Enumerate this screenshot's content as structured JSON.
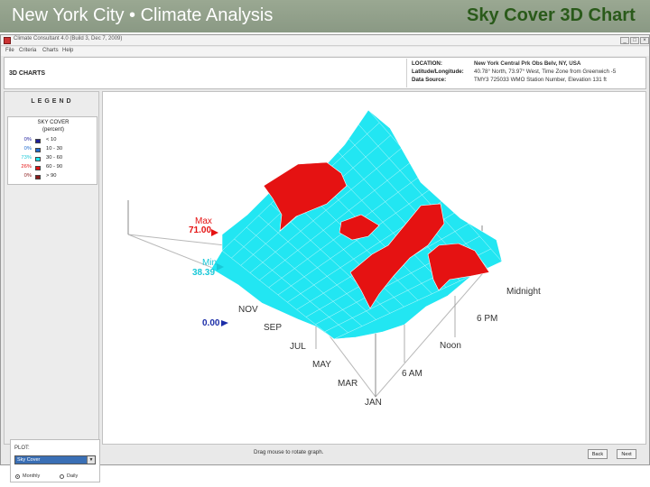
{
  "slide": {
    "title_left": "New York City • Climate Analysis",
    "title_right": "Sky Cover 3D Chart",
    "title_right_color": "#2a5a1a"
  },
  "app": {
    "window_title": "Climate Consultant 4.0 (Build 3, Dec 7, 2009)",
    "menu": [
      "File",
      "Criteria",
      "Charts",
      "Help"
    ],
    "window_buttons": [
      "minimize-icon",
      "maximize-icon",
      "close-icon"
    ]
  },
  "header": {
    "section_label": "3D CHARTS",
    "location": [
      {
        "key": "LOCATION:",
        "value": "New York Central Prk Obs Belv, NY, USA"
      },
      {
        "key": "Latitude/Longitude:",
        "value": "40.78° North, 73.97° West, Time Zone from Greenwich  -5"
      },
      {
        "key": "Data Source:",
        "value": "TMY3     725033 WMO Station Number, Elevation 131 ft"
      }
    ]
  },
  "legend": {
    "title": "LEGEND",
    "heading_line1": "SKY COVER",
    "heading_line2": "(percent)",
    "rows": [
      {
        "pct": "0%",
        "range": "< 10",
        "color": "#1c1c9c",
        "pct_color": "#1c1c9c"
      },
      {
        "pct": "0%",
        "range": "10  -  30",
        "color": "#1e6ad0",
        "pct_color": "#1e6ad0"
      },
      {
        "pct": "73%",
        "range": "30  -  60",
        "color": "#19e5f0",
        "pct_color": "#19c8d8"
      },
      {
        "pct": "26%",
        "range": "60  -  90",
        "color": "#e51212",
        "pct_color": "#e51212"
      },
      {
        "pct": "0%",
        "range": "> 90",
        "color": "#8a1a1a",
        "pct_color": "#8a1a1a"
      }
    ]
  },
  "plot": {
    "label": "PLOT:",
    "selected": "Sky Cover",
    "radios": [
      {
        "label": "Monthly",
        "checked": true
      },
      {
        "label": "Daily",
        "checked": false
      }
    ]
  },
  "chart": {
    "max_label": "Max",
    "max_value": "71.00",
    "max_color": "#e51212",
    "min_label": "Min",
    "min_value": "38.39",
    "min_color": "#19c8d8",
    "zero_value": "0.00",
    "zero_color": "#1c2ea8",
    "month_labels": [
      "NOV",
      "SEP",
      "JUL",
      "MAY",
      "MAR",
      "JAN"
    ],
    "hour_labels": [
      "Midnight",
      "6 PM",
      "Noon",
      "6 AM"
    ],
    "surface_color": "#22e6f2",
    "high_color": "#e51212"
  },
  "footer": {
    "hint": "Drag mouse to rotate graph.",
    "back_label": "Back",
    "next_label": "Next"
  }
}
